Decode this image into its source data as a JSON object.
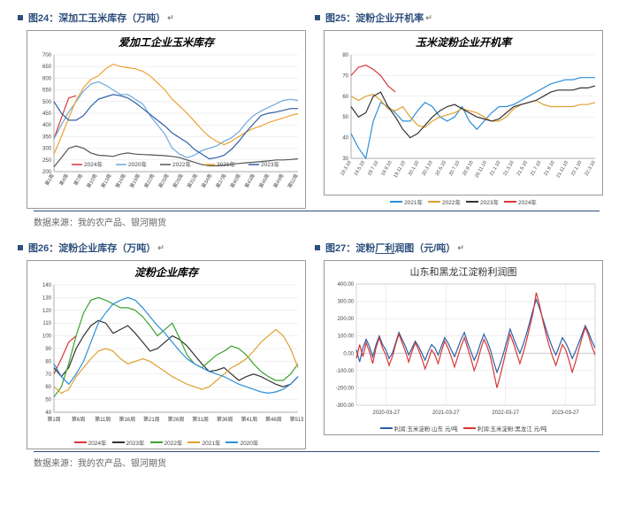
{
  "source_text": "数据来源：我的农产品、银河期货",
  "fig24": {
    "caption": "图24：深加工玉米库存（万吨）",
    "chart_title": "爱加工企业玉米库存",
    "ylim": [
      200,
      700
    ],
    "ytick": 50,
    "xlabels": [
      "第1周",
      "第4周",
      "第7周",
      "第10周",
      "第13周",
      "第16周",
      "第19周",
      "第22周",
      "第25周",
      "第28周",
      "第31周",
      "第34周",
      "第37周",
      "第40周",
      "第43周",
      "第46周",
      "第49周",
      "第52周"
    ],
    "series": [
      {
        "name": "2024年",
        "color": "#d93636",
        "data": [
          340,
          430,
          515,
          525,
          null
        ]
      },
      {
        "name": "2020年",
        "color": "#6fa8dc",
        "data": [
          340,
          400,
          455,
          500,
          545,
          575,
          585,
          570,
          550,
          530,
          530,
          510,
          490,
          440,
          400,
          360,
          300,
          275,
          260,
          270,
          290,
          300,
          310,
          330,
          345,
          370,
          410,
          440,
          460,
          475,
          490,
          505,
          510,
          505
        ]
      },
      {
        "name": "2022年",
        "color": "#555555",
        "data": [
          220,
          260,
          300,
          310,
          300,
          280,
          270,
          268,
          265,
          275,
          280,
          275,
          273,
          272,
          270,
          268,
          265,
          260,
          250,
          240,
          230,
          225,
          225,
          228,
          232,
          235,
          238,
          240,
          243,
          246,
          250,
          250,
          252,
          255
        ]
      },
      {
        "name": "2021年",
        "color": "#f0a030",
        "data": [
          275,
          350,
          430,
          505,
          560,
          595,
          610,
          640,
          660,
          650,
          645,
          640,
          630,
          610,
          580,
          550,
          510,
          480,
          450,
          415,
          380,
          350,
          330,
          315,
          330,
          350,
          370,
          385,
          395,
          410,
          420,
          430,
          440,
          448
        ]
      },
      {
        "name": "2023年",
        "color": "#2d5fa5",
        "data": [
          500,
          450,
          420,
          420,
          440,
          480,
          510,
          520,
          530,
          525,
          515,
          495,
          470,
          445,
          420,
          395,
          365,
          345,
          325,
          295,
          275,
          255,
          260,
          270,
          295,
          330,
          370,
          405,
          440,
          450,
          455,
          462,
          470,
          470
        ]
      }
    ],
    "legend_order": [
      "2024年",
      "2020年",
      "2022年",
      "2021年",
      "2023年"
    ]
  },
  "fig25": {
    "caption": "图25：淀粉企业开机率",
    "chart_title": "玉米淀粉企业开机率",
    "ylim": [
      30,
      80
    ],
    "ytick": 10,
    "xlabels": [
      "19.3.10",
      "19.5.10",
      "19.7.10",
      "19.9.10",
      "19.11.10",
      "20.1.10",
      "20.3.10",
      "20.5.10",
      "20.7.10",
      "20.9.10",
      "20.11.10",
      "21.1.10",
      "21.3.10",
      "21.5.10",
      "21.7.10",
      "21.9.10",
      "21.11.10",
      "22.1.10",
      "22.3.10"
    ],
    "series": [
      {
        "name": "2021年",
        "color": "#2d8fd8",
        "data": [
          42,
          35,
          30,
          48,
          57,
          55,
          52,
          48,
          48,
          53,
          57,
          55,
          50,
          48,
          50,
          55,
          48,
          44,
          48,
          52,
          55,
          55,
          56,
          58,
          60,
          62,
          64,
          66,
          67,
          68,
          68,
          69,
          69,
          69
        ]
      },
      {
        "name": "2022年",
        "color": "#e0a030",
        "data": [
          60,
          58,
          60,
          61,
          58,
          54,
          53,
          55,
          50,
          46,
          45,
          48,
          50,
          51,
          52,
          54,
          53,
          52,
          50,
          48,
          48,
          50,
          54,
          56,
          57,
          58,
          56,
          55,
          55,
          55,
          55,
          56,
          56,
          57
        ]
      },
      {
        "name": "2023年",
        "color": "#333333",
        "data": [
          55,
          50,
          52,
          60,
          62,
          55,
          50,
          44,
          40,
          42,
          46,
          50,
          53,
          55,
          56,
          54,
          52,
          50,
          49,
          48,
          49,
          52,
          55,
          56,
          57,
          58,
          60,
          62,
          63,
          63,
          63,
          64,
          64,
          65
        ]
      },
      {
        "name": "2024年",
        "color": "#d93636",
        "data": [
          70,
          74,
          75,
          73,
          70,
          65,
          62,
          null
        ]
      }
    ]
  },
  "fig26": {
    "caption": "图26：淀粉企业库存（万吨）",
    "chart_title": "淀粉企业库存",
    "ylim": [
      40,
      140
    ],
    "ytick": 10,
    "xlabels": [
      "第1周",
      "第6周",
      "第11周",
      "第16周",
      "第21周",
      "第26周",
      "第31周",
      "第36周",
      "第41周",
      "第46周",
      "第51周"
    ],
    "series": [
      {
        "name": "2024年",
        "color": "#d93636",
        "data": [
          70,
          82,
          95,
          100,
          null
        ]
      },
      {
        "name": "2023年",
        "color": "#333333",
        "data": [
          75,
          68,
          75,
          90,
          100,
          108,
          112,
          110,
          102,
          105,
          108,
          102,
          95,
          88,
          90,
          95,
          100,
          97,
          92,
          85,
          78,
          72,
          73,
          75,
          70,
          65,
          68,
          70,
          68,
          65,
          62,
          60,
          62,
          68
        ]
      },
      {
        "name": "2022年",
        "color": "#3ca030",
        "data": [
          52,
          60,
          78,
          100,
          118,
          128,
          130,
          128,
          125,
          122,
          122,
          120,
          115,
          108,
          100,
          105,
          110,
          98,
          85,
          78,
          75,
          80,
          85,
          88,
          92,
          90,
          85,
          78,
          72,
          68,
          65,
          65,
          70,
          78
        ]
      },
      {
        "name": "2021年",
        "color": "#e0a030",
        "data": [
          60,
          55,
          58,
          68,
          75,
          82,
          88,
          90,
          88,
          82,
          78,
          80,
          82,
          80,
          76,
          72,
          68,
          65,
          62,
          60,
          58,
          60,
          65,
          70,
          75,
          78,
          82,
          88,
          95,
          100,
          105,
          100,
          90,
          75
        ]
      },
      {
        "name": "2020年",
        "color": "#2d8fd8",
        "data": [
          78,
          68,
          62,
          70,
          80,
          95,
          110,
          118,
          125,
          128,
          130,
          128,
          122,
          115,
          108,
          102,
          95,
          88,
          82,
          78,
          75,
          72,
          70,
          68,
          65,
          62,
          60,
          58,
          56,
          55,
          56,
          58,
          62,
          68
        ]
      }
    ]
  },
  "fig27": {
    "caption": "图27：淀粉厂利润图（元/吨）",
    "chart_title": "山东和黑龙江淀粉利润图",
    "ylim": [
      -300,
      400
    ],
    "ytick": 100,
    "xlabels_major": [
      "2020-03-27",
      "2021-03-27",
      "2022-03-27",
      "2023-03-27"
    ],
    "series": [
      {
        "name": "利润:玉米淀粉:山东 元/吨",
        "color": "#2d5fa5",
        "data": [
          20,
          -50,
          30,
          80,
          40,
          -20,
          50,
          100,
          50,
          20,
          -30,
          0,
          60,
          120,
          80,
          40,
          -10,
          30,
          70,
          40,
          0,
          -40,
          10,
          50,
          30,
          -10,
          40,
          90,
          60,
          20,
          -20,
          30,
          80,
          120,
          60,
          10,
          -40,
          0,
          60,
          110,
          70,
          20,
          -50,
          -110,
          -60,
          0,
          70,
          140,
          90,
          40,
          0,
          50,
          110,
          180,
          250,
          310,
          260,
          200,
          140,
          80,
          30,
          -10,
          40,
          90,
          60,
          20,
          -30,
          10,
          60,
          110,
          160,
          120,
          70,
          30
        ]
      },
      {
        "name": "利润:玉米淀粉:黑龙江 元/吨",
        "color": "#d93636",
        "data": [
          -30,
          50,
          -20,
          60,
          10,
          -60,
          30,
          90,
          30,
          -10,
          -70,
          -20,
          50,
          110,
          60,
          10,
          -50,
          10,
          60,
          20,
          -30,
          -90,
          -40,
          20,
          -10,
          -60,
          10,
          70,
          30,
          -20,
          -80,
          -20,
          40,
          90,
          30,
          -30,
          -100,
          -50,
          20,
          80,
          40,
          -20,
          -110,
          -200,
          -130,
          -50,
          30,
          110,
          60,
          0,
          -60,
          0,
          70,
          150,
          230,
          350,
          280,
          190,
          110,
          40,
          -20,
          -70,
          -10,
          50,
          20,
          -40,
          -110,
          -50,
          20,
          90,
          150,
          100,
          40,
          -10
        ]
      }
    ]
  }
}
